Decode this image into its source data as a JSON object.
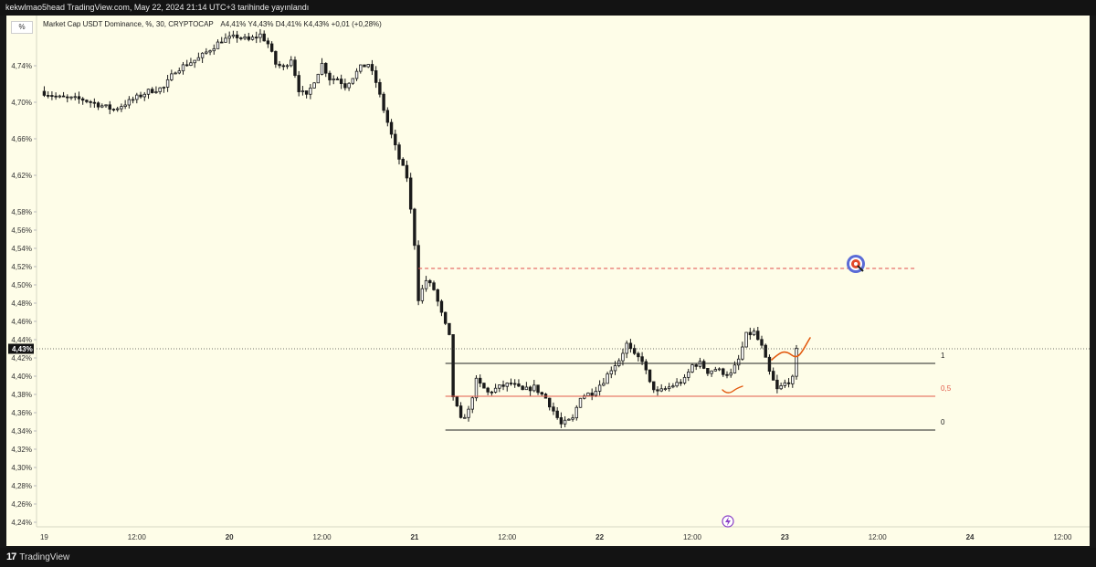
{
  "header": {
    "attribution": "kekwlmao5head TradingView.com, May 22, 2024 21:14 UTC+3 tarihinde yayınlandı"
  },
  "footer": {
    "brand": "TradingView"
  },
  "toolbar": {
    "scale_button": "%"
  },
  "legend": {
    "symbol": "Market Cap USDT Dominance, %, 30, CRYPTOCAP",
    "ohlc": "A4,41%  Y4,43%  D4,41%  K4,43%  +0,01 (+0,28%)"
  },
  "price_badge": "4,43%",
  "chart_data": {
    "type": "candlestick",
    "y_unit": "%",
    "ylim": [
      4.235,
      4.795
    ],
    "y_ticks": [
      4.24,
      4.26,
      4.28,
      4.3,
      4.32,
      4.34,
      4.36,
      4.38,
      4.4,
      4.42,
      4.44,
      4.46,
      4.48,
      4.5,
      4.52,
      4.54,
      4.56,
      4.58,
      4.62,
      4.66,
      4.7,
      4.74
    ],
    "y_tick_labels": [
      "4,24%",
      "4,26%",
      "4,28%",
      "4,30%",
      "4,32%",
      "4,34%",
      "4,36%",
      "4,38%",
      "4,40%",
      "4,42%",
      "4,44%",
      "4,46%",
      "4,48%",
      "4,50%",
      "4,52%",
      "4,54%",
      "4,56%",
      "4,58%",
      "4,62%",
      "4,66%",
      "4,70%",
      "4,74%"
    ],
    "x_labels": [
      {
        "t": 0,
        "label": "19",
        "bold": false
      },
      {
        "t": 24,
        "label": "12:00",
        "bold": false
      },
      {
        "t": 48,
        "label": "20",
        "bold": true
      },
      {
        "t": 72,
        "label": "12:00",
        "bold": false
      },
      {
        "t": 96,
        "label": "21",
        "bold": true
      },
      {
        "t": 120,
        "label": "12:00",
        "bold": false
      },
      {
        "t": 144,
        "label": "22",
        "bold": true
      },
      {
        "t": 168,
        "label": "12:00",
        "bold": false
      },
      {
        "t": 192,
        "label": "23",
        "bold": true
      },
      {
        "t": 216,
        "label": "12:00",
        "bold": false
      },
      {
        "t": 240,
        "label": "24",
        "bold": true
      },
      {
        "t": 264,
        "label": "12:00",
        "bold": false
      }
    ],
    "x_range": [
      -2,
      271
    ],
    "bar_interval": 1,
    "price_path": [
      [
        -1,
        4.712
      ],
      [
        4,
        4.705
      ],
      [
        10,
        4.703
      ],
      [
        18,
        4.692
      ],
      [
        23,
        4.703
      ],
      [
        27,
        4.712
      ],
      [
        31,
        4.716
      ],
      [
        34,
        4.735
      ],
      [
        37,
        4.742
      ],
      [
        40,
        4.748
      ],
      [
        43,
        4.758
      ],
      [
        46,
        4.768
      ],
      [
        50,
        4.772
      ],
      [
        53,
        4.768
      ],
      [
        56,
        4.774
      ],
      [
        58,
        4.764
      ],
      [
        60,
        4.742
      ],
      [
        62,
        4.738
      ],
      [
        64,
        4.748
      ],
      [
        66,
        4.714
      ],
      [
        68,
        4.706
      ],
      [
        70,
        4.724
      ],
      [
        72,
        4.742
      ],
      [
        74,
        4.726
      ],
      [
        76,
        4.726
      ],
      [
        78,
        4.718
      ],
      [
        80,
        4.728
      ],
      [
        82,
        4.738
      ],
      [
        84,
        4.742
      ],
      [
        86,
        4.722
      ],
      [
        88,
        4.692
      ],
      [
        90,
        4.664
      ],
      [
        92,
        4.638
      ],
      [
        94,
        4.618
      ],
      [
        96,
        4.545
      ],
      [
        97,
        4.485
      ],
      [
        99,
        4.505
      ],
      [
        101,
        4.495
      ],
      [
        103,
        4.468
      ],
      [
        105,
        4.443
      ],
      [
        106,
        4.378
      ],
      [
        108,
        4.352
      ],
      [
        110,
        4.362
      ],
      [
        112,
        4.395
      ],
      [
        115,
        4.382
      ],
      [
        118,
        4.388
      ],
      [
        121,
        4.392
      ],
      [
        124,
        4.384
      ],
      [
        127,
        4.388
      ],
      [
        130,
        4.376
      ],
      [
        132,
        4.362
      ],
      [
        134,
        4.347
      ],
      [
        137,
        4.353
      ],
      [
        139,
        4.378
      ],
      [
        142,
        4.382
      ],
      [
        145,
        4.395
      ],
      [
        147,
        4.408
      ],
      [
        149,
        4.418
      ],
      [
        151,
        4.435
      ],
      [
        153,
        4.422
      ],
      [
        155,
        4.418
      ],
      [
        157,
        4.392
      ],
      [
        159,
        4.382
      ],
      [
        162,
        4.388
      ],
      [
        164,
        4.392
      ],
      [
        166,
        4.396
      ],
      [
        168,
        4.412
      ],
      [
        170,
        4.414
      ],
      [
        172,
        4.405
      ],
      [
        174,
        4.408
      ],
      [
        176,
        4.404
      ],
      [
        178,
        4.402
      ],
      [
        180,
        4.418
      ],
      [
        182,
        4.445
      ],
      [
        184,
        4.448
      ],
      [
        186,
        4.432
      ],
      [
        188,
        4.404
      ],
      [
        190,
        4.385
      ],
      [
        192,
        4.392
      ],
      [
        194,
        4.397
      ],
      [
        195,
        4.428
      ]
    ],
    "fibonacci": {
      "t_start": 104,
      "t_end": 231,
      "levels": [
        {
          "label": "1",
          "value": 4.414,
          "color": "#222222"
        },
        {
          "label": "0,5",
          "value": 4.378,
          "color": "#e25a4a"
        },
        {
          "label": "0",
          "value": 4.341,
          "color": "#222222"
        }
      ]
    },
    "target_line": {
      "value": 4.518,
      "t_start": 97,
      "t_end": 226,
      "color": "#e04a4a"
    },
    "current_price": 4.43,
    "projection_color": "#e25a10"
  }
}
